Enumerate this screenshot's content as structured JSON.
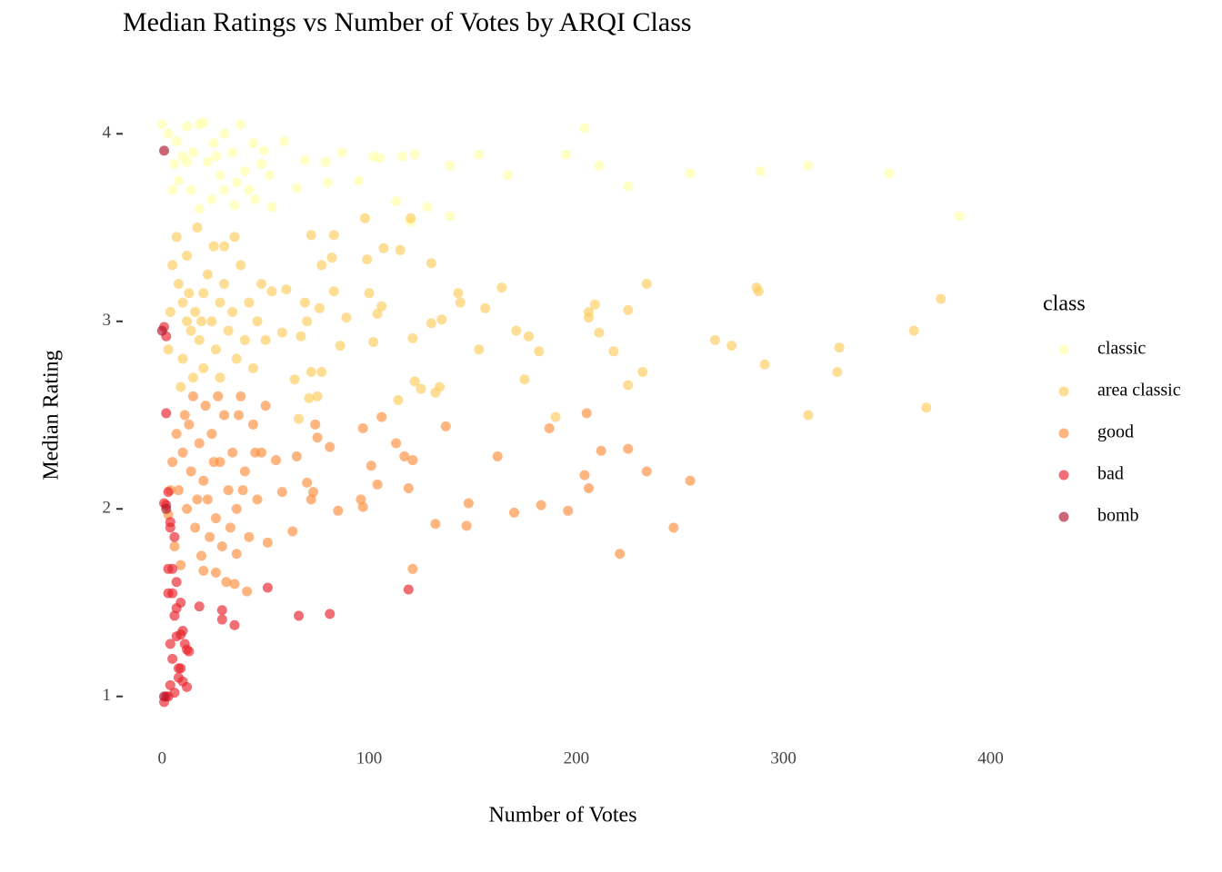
{
  "chart_data": {
    "type": "scatter",
    "title": "Median Ratings vs Number of Votes by ARQI Class",
    "x_label": "Number of Votes",
    "y_label": "Median Rating",
    "legend_title": "class",
    "legend": "right",
    "xlim": [
      -8,
      420
    ],
    "ylim": [
      0.8,
      4.2
    ],
    "xticks": [
      0,
      100,
      200,
      300,
      400
    ],
    "yticks": [
      1,
      2,
      3,
      4
    ],
    "grid": false,
    "series": [
      {
        "name": "classic",
        "color": "#ffffa8",
        "x": [
          385,
          351,
          312,
          289,
          255,
          225,
          211,
          204,
          195,
          167,
          153,
          139,
          122,
          116,
          113,
          128,
          120,
          139,
          105,
          102,
          95,
          87,
          79,
          80,
          69,
          65,
          59,
          52,
          48,
          44,
          38,
          30,
          20,
          18,
          12,
          0,
          3,
          7,
          10,
          15,
          22,
          25,
          28,
          34,
          40,
          42,
          45,
          53,
          5,
          8,
          14,
          18,
          24,
          30,
          35,
          12,
          6,
          26,
          36,
          49
        ],
        "values": [
          3.56,
          3.79,
          3.83,
          3.8,
          3.79,
          3.72,
          3.83,
          4.03,
          3.89,
          3.78,
          3.89,
          3.83,
          3.89,
          3.88,
          3.64,
          3.61,
          3.53,
          3.56,
          3.87,
          3.88,
          3.75,
          3.9,
          3.85,
          3.74,
          3.86,
          3.71,
          3.96,
          3.78,
          3.84,
          3.95,
          4.05,
          4.0,
          4.06,
          4.05,
          4.04,
          4.05,
          4.0,
          3.96,
          3.88,
          3.9,
          3.85,
          3.95,
          3.78,
          3.9,
          3.8,
          3.7,
          3.65,
          3.61,
          3.7,
          3.75,
          3.7,
          3.6,
          3.65,
          3.7,
          3.62,
          3.85,
          3.84,
          3.88,
          3.74,
          3.91
        ]
      },
      {
        "name": "area classic",
        "color": "#fecc5c",
        "x": [
          312,
          369,
          326,
          327,
          291,
          275,
          267,
          363,
          376,
          288,
          287,
          234,
          225,
          209,
          206,
          206,
          211,
          218,
          232,
          225,
          190,
          182,
          177,
          171,
          175,
          164,
          156,
          153,
          143,
          144,
          135,
          130,
          134,
          132,
          125,
          122,
          121,
          114,
          102,
          104,
          106,
          100,
          99,
          98,
          107,
          115,
          120,
          130,
          82,
          83,
          72,
          77,
          83,
          89,
          86,
          77,
          72,
          71,
          75,
          64,
          67,
          70,
          76,
          69,
          60,
          53,
          66,
          58,
          5,
          8,
          10,
          12,
          14,
          16,
          18,
          20,
          22,
          24,
          26,
          28,
          30,
          32,
          34,
          36,
          38,
          40,
          42,
          44,
          46,
          48,
          10,
          15,
          20,
          25,
          30,
          35,
          7,
          12,
          3,
          9,
          17,
          28,
          4,
          50,
          13,
          19
        ],
        "values": [
          2.5,
          2.54,
          2.73,
          2.86,
          2.77,
          2.87,
          2.9,
          2.95,
          3.12,
          3.16,
          3.18,
          3.2,
          3.06,
          3.09,
          3.05,
          3.02,
          2.94,
          2.84,
          2.73,
          2.66,
          2.49,
          2.84,
          2.92,
          2.95,
          2.69,
          3.18,
          3.07,
          2.85,
          3.15,
          3.1,
          3.01,
          2.99,
          2.65,
          2.62,
          2.64,
          2.68,
          2.91,
          2.58,
          2.89,
          3.04,
          3.08,
          3.15,
          3.33,
          3.55,
          3.39,
          3.38,
          3.55,
          3.31,
          3.34,
          3.46,
          3.46,
          3.3,
          3.16,
          3.02,
          2.87,
          2.73,
          2.73,
          2.59,
          2.6,
          2.69,
          2.92,
          3.0,
          3.07,
          3.1,
          3.17,
          3.16,
          2.48,
          2.94,
          3.3,
          3.2,
          3.1,
          3.0,
          2.95,
          3.05,
          2.9,
          3.15,
          3.25,
          3.0,
          2.85,
          3.1,
          3.2,
          2.95,
          3.05,
          2.8,
          3.3,
          2.9,
          3.1,
          2.75,
          3.0,
          3.2,
          2.8,
          2.7,
          2.75,
          3.4,
          3.4,
          3.45,
          3.45,
          3.35,
          2.85,
          2.65,
          3.5,
          2.7,
          3.05,
          2.9,
          3.15,
          3.0
        ]
      },
      {
        "name": "good",
        "color": "#fd8d3c",
        "x": [
          51,
          63,
          85,
          97,
          96,
          104,
          119,
          132,
          147,
          148,
          170,
          183,
          196,
          204,
          206,
          212,
          221,
          225,
          234,
          247,
          255,
          205,
          187,
          162,
          137,
          121,
          117,
          113,
          106,
          101,
          97,
          81,
          74,
          75,
          70,
          72,
          73,
          58,
          55,
          65,
          121,
          41,
          35,
          31,
          36,
          20,
          26,
          5,
          8,
          10,
          12,
          14,
          16,
          18,
          20,
          22,
          24,
          26,
          28,
          30,
          32,
          34,
          36,
          38,
          40,
          42,
          44,
          46,
          48,
          50,
          6,
          9,
          11,
          15,
          19,
          23,
          27,
          33,
          37,
          7,
          13,
          17,
          21,
          25,
          29,
          39,
          45,
          3,
          4
        ],
        "values": [
          1.82,
          1.88,
          1.99,
          2.01,
          2.05,
          2.13,
          2.11,
          1.92,
          1.91,
          2.03,
          1.98,
          2.02,
          1.99,
          2.18,
          2.11,
          2.31,
          1.76,
          2.32,
          2.2,
          1.9,
          2.15,
          2.51,
          2.43,
          2.28,
          2.44,
          2.26,
          2.28,
          2.35,
          2.49,
          2.23,
          2.43,
          2.33,
          2.45,
          2.38,
          2.14,
          2.05,
          2.09,
          2.09,
          2.26,
          2.28,
          1.68,
          1.56,
          1.6,
          1.61,
          1.76,
          1.67,
          1.66,
          2.25,
          2.1,
          2.3,
          2.0,
          2.2,
          1.9,
          2.35,
          2.15,
          2.05,
          2.4,
          1.95,
          2.25,
          2.5,
          2.1,
          2.3,
          2.0,
          2.6,
          2.2,
          1.85,
          2.45,
          2.05,
          2.3,
          2.55,
          1.8,
          1.7,
          2.5,
          2.6,
          1.75,
          1.85,
          2.6,
          1.9,
          2.5,
          2.4,
          2.45,
          2.05,
          2.55,
          2.25,
          1.8,
          2.1,
          2.3,
          1.97,
          2.1
        ]
      },
      {
        "name": "bad",
        "color": "#e8202a",
        "x": [
          1,
          1,
          2,
          2,
          3,
          3,
          4,
          5,
          4,
          5,
          6,
          6,
          7,
          8,
          9,
          9,
          10,
          11,
          12,
          13,
          12,
          8,
          10,
          5,
          4,
          6,
          2,
          1,
          3,
          9,
          18,
          29,
          29,
          35,
          51,
          66,
          81,
          119,
          7,
          2,
          3,
          4,
          7
        ],
        "values": [
          2.03,
          2.97,
          2.92,
          2.51,
          1.68,
          1.55,
          1.28,
          1.55,
          1.93,
          1.68,
          1.43,
          1.85,
          1.32,
          1.15,
          1.5,
          1.33,
          1.35,
          1.28,
          1.25,
          1.24,
          1.05,
          1.1,
          1.08,
          1.2,
          1.06,
          1.02,
          1.0,
          0.97,
          1.0,
          1.15,
          1.48,
          1.46,
          1.41,
          1.38,
          1.58,
          1.43,
          1.44,
          1.57,
          1.47,
          2.02,
          2.09,
          1.9,
          1.61
        ]
      },
      {
        "name": "bomb",
        "color": "#b0142a",
        "x": [
          1,
          2,
          1,
          0
        ],
        "values": [
          3.91,
          2.0,
          1.0,
          2.95
        ]
      }
    ]
  }
}
